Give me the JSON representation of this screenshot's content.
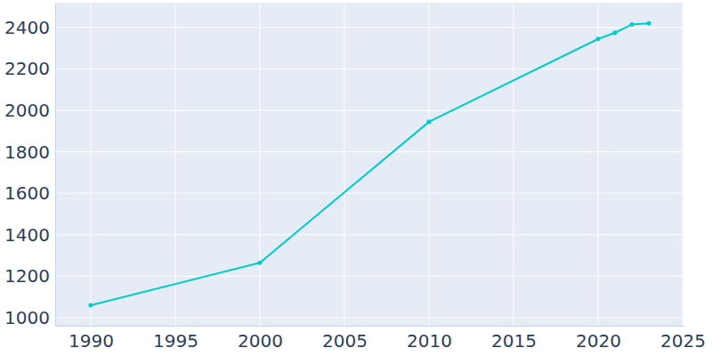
{
  "chart_data": {
    "type": "line",
    "x": [
      1990,
      2000,
      2010,
      2020,
      2021,
      2022,
      2023
    ],
    "series": [
      {
        "color": "#00cccc",
        "marker": "circle",
        "values": [
          1060,
          1265,
          1945,
          2345,
          2375,
          2415,
          2420
        ]
      }
    ],
    "xlim": [
      1987.9,
      2025.05
    ],
    "xticks": [
      1990,
      1995,
      2000,
      2005,
      2010,
      2015,
      2020,
      2025
    ],
    "ylim": [
      961,
      2520
    ],
    "yticks": [
      1000,
      1200,
      1400,
      1600,
      1800,
      2000,
      2200,
      2400
    ],
    "grid": true
  }
}
